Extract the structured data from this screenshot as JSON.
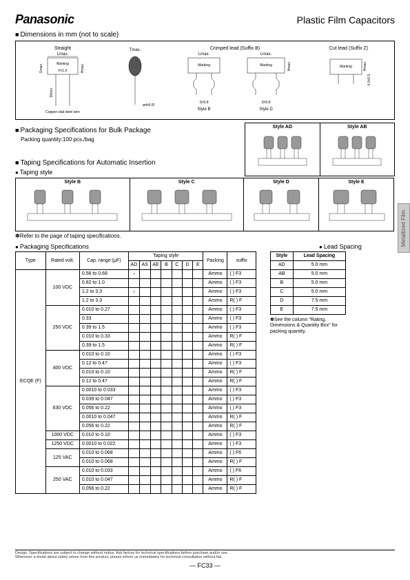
{
  "header": {
    "brand": "Panasonic",
    "title": "Plastic Film Capacitors"
  },
  "sections": {
    "dimensions": "Dimensions in mm (not to scale)",
    "packaging_bulk": "Packaging Specifications for Bulk Package",
    "packaging_bulk_sub": "Packing quantity:100 pcs./bag",
    "taping_auto": "Taping Specifications for Automatic Insertion",
    "taping_style": "Taping style",
    "taping_note": "✽Refer to the page of taping specifications.",
    "packaging_spec": "Packaging Specifications",
    "lead_spacing": "Lead Spacing"
  },
  "dim_labels": {
    "straight": "Straight",
    "lmax": "Lmax.",
    "tmax": "Tmax.",
    "gmax": "Gmax.",
    "hmax": "Hmax.",
    "marking": "Marking",
    "f10": "F±1.0",
    "twentymin": "20min.",
    "phi": "ød±0.05",
    "copper": "Copper-clad steel wire",
    "crimped": "Crimped lead (Suffix B)",
    "styleB": "Style B",
    "styleD": "Style D",
    "cutlead": "Cut lead (Suffix Z)",
    "s08": "S±0.8",
    "four": "4.0±0.5"
  },
  "pack_styles": {
    "ad": "Style AD",
    "ab": "Style AB",
    "b": "Style B",
    "c": "Style C",
    "d": "Style D",
    "e": "Style E"
  },
  "side_tab": "Metallized Film",
  "pack_table": {
    "headers": {
      "type": "Type",
      "rated": "Rated volt.",
      "cap": "Cap. range\n(μF)",
      "taping": "Taping style",
      "packing": "Packing",
      "suffix": "suffix"
    },
    "tape_cols": [
      "AD",
      "AS",
      "AE",
      "B",
      "C",
      "D",
      "E"
    ],
    "type": "ECQE (F)",
    "rows": [
      {
        "volt": "100 VDC",
        "cap": "0.56 to 0.68",
        "t": [
          1,
          0,
          0,
          0,
          0,
          0,
          0
        ],
        "p": "Ammo",
        "s": "(   ) F3"
      },
      {
        "volt": "",
        "cap": "0.82 to 1.0",
        "t": [
          0,
          0,
          0,
          0,
          0,
          0,
          0
        ],
        "p": "Ammo",
        "s": "(   ) F3"
      },
      {
        "volt": "",
        "cap": "1.2 to 3.3",
        "t": [
          1,
          0,
          0,
          0,
          0,
          0,
          0
        ],
        "p": "Ammo",
        "s": "(   ) F3"
      },
      {
        "volt": "",
        "cap": "1.2 to 3.3",
        "t": [
          0,
          0,
          0,
          0,
          0,
          0,
          0
        ],
        "p": "Ammo",
        "s": "R(   ) F"
      },
      {
        "volt": "250 VDC",
        "cap": "0.010 to 0.27",
        "t": [
          0,
          0,
          0,
          0,
          0,
          0,
          0
        ],
        "p": "Ammo",
        "s": "(   ) F3"
      },
      {
        "volt": "",
        "cap": "0.33",
        "t": [
          0,
          0,
          0,
          0,
          0,
          0,
          0
        ],
        "p": "Ammo",
        "s": "(   ) F3"
      },
      {
        "volt": "",
        "cap": "0.39 to 1.5",
        "t": [
          0,
          0,
          0,
          0,
          0,
          0,
          0
        ],
        "p": "Ammo",
        "s": "(   ) F3"
      },
      {
        "volt": "",
        "cap": "0.010 to 0.33",
        "t": [
          0,
          0,
          0,
          0,
          0,
          0,
          0
        ],
        "p": "Ammo",
        "s": "R(   ) F"
      },
      {
        "volt": "",
        "cap": "0.39 to 1.5",
        "t": [
          0,
          0,
          0,
          0,
          0,
          0,
          0
        ],
        "p": "Ammo",
        "s": "R(   ) F"
      },
      {
        "volt": "400 VDC",
        "cap": "0.010 to 0.10",
        "t": [
          0,
          0,
          0,
          0,
          0,
          0,
          0
        ],
        "p": "Ammo",
        "s": "(   ) F3"
      },
      {
        "volt": "",
        "cap": "0.12 to 0.47",
        "t": [
          0,
          0,
          0,
          0,
          0,
          0,
          0
        ],
        "p": "Ammo",
        "s": "(   ) F3"
      },
      {
        "volt": "",
        "cap": "0.010 to 0.10",
        "t": [
          0,
          0,
          0,
          0,
          0,
          0,
          0
        ],
        "p": "Ammo",
        "s": "R(   ) F"
      },
      {
        "volt": "",
        "cap": "0.12 to 0.47",
        "t": [
          0,
          0,
          0,
          0,
          0,
          0,
          0
        ],
        "p": "Ammo",
        "s": "R(   ) F"
      },
      {
        "volt": "630 VDC",
        "cap": "0.0010 to 0.033",
        "t": [
          0,
          0,
          0,
          0,
          0,
          0,
          0
        ],
        "p": "Ammo",
        "s": "(   ) F3"
      },
      {
        "volt": "",
        "cap": "0.039 to 0.047",
        "t": [
          0,
          0,
          0,
          0,
          0,
          0,
          0
        ],
        "p": "Ammo",
        "s": "(   ) F3"
      },
      {
        "volt": "",
        "cap": "0.056 to 0.22",
        "t": [
          0,
          0,
          0,
          0,
          0,
          0,
          0
        ],
        "p": "Ammo",
        "s": "(   ) F3"
      },
      {
        "volt": "",
        "cap": "0.0010 to 0.047",
        "t": [
          0,
          0,
          0,
          0,
          0,
          0,
          0
        ],
        "p": "Ammo",
        "s": "R(   ) F"
      },
      {
        "volt": "",
        "cap": "0.056 to 0.22",
        "t": [
          0,
          0,
          0,
          0,
          0,
          0,
          0
        ],
        "p": "Ammo",
        "s": "R(   ) F"
      },
      {
        "volt": "1000 VDC",
        "cap": "0.010 to 0.10",
        "t": [
          0,
          0,
          0,
          0,
          0,
          0,
          0
        ],
        "p": "Ammo",
        "s": "(   ) F3"
      },
      {
        "volt": "1250 VDC",
        "cap": "0.0010 to 0.022",
        "t": [
          0,
          0,
          0,
          0,
          0,
          0,
          0
        ],
        "p": "Ammo",
        "s": "(   ) F3"
      },
      {
        "volt": "125 VAC",
        "cap": "0.010 to 0.068",
        "t": [
          0,
          0,
          0,
          0,
          0,
          0,
          0
        ],
        "p": "Ammo",
        "s": "(   ) F6"
      },
      {
        "volt": "",
        "cap": "0.010 to 0.068",
        "t": [
          0,
          0,
          0,
          0,
          0,
          0,
          0
        ],
        "p": "Ammo",
        "s": "R(   ) F"
      },
      {
        "volt": "250 VAC",
        "cap": "0.010 to 0.033",
        "t": [
          0,
          0,
          0,
          0,
          0,
          0,
          0
        ],
        "p": "Ammo",
        "s": "(   ) F6"
      },
      {
        "volt": "",
        "cap": "0.010 to 0.047",
        "t": [
          0,
          0,
          0,
          0,
          0,
          0,
          0
        ],
        "p": "Ammo",
        "s": "R(   ) F"
      },
      {
        "volt": "",
        "cap": "0.056 to 0.22",
        "t": [
          0,
          0,
          0,
          0,
          0,
          0,
          0
        ],
        "p": "Ammo",
        "s": "R(   ) F"
      }
    ]
  },
  "lead_table": {
    "headers": [
      "Style",
      "Lead Spacing"
    ],
    "rows": [
      [
        "AD",
        "5.0 mm"
      ],
      [
        "AB",
        "5.0 mm"
      ],
      [
        "B",
        "5.0 mm"
      ],
      [
        "C",
        "5.0 mm"
      ],
      [
        "D",
        "7.5 mm"
      ],
      [
        "E",
        "7.5 mm"
      ]
    ],
    "note": "✽See the column \"Rating, Dimensions & Quantity Box\" for packing quantity."
  },
  "footer": {
    "line1": "Design, Specifications are subject to change without notice.      Ask factory for technical specifications before purchase and/or use.",
    "line2": "Whenever a doubt about safety arises from this product, please inform us immediately for technical consultation without fail.",
    "page": "—  FC33  —"
  }
}
